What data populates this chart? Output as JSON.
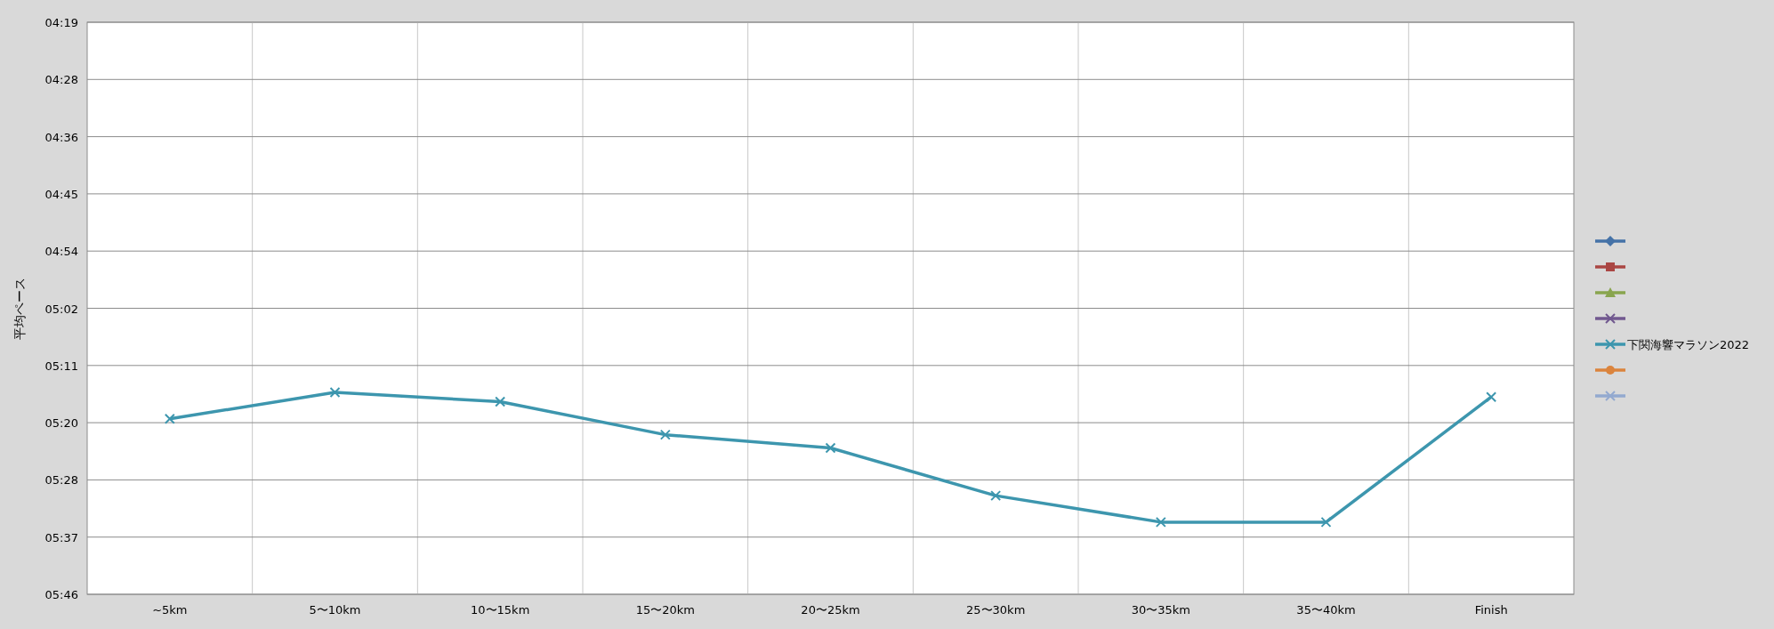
{
  "chart_data": {
    "type": "line",
    "ylabel": "平均ペース",
    "categories": [
      "~5km",
      "5〜10km",
      "10〜15km",
      "15〜20km",
      "20〜25km",
      "25〜30km",
      "30〜35km",
      "35〜40km",
      "Finish"
    ],
    "ylim": [
      345.6,
      259.2
    ],
    "yticks": [
      {
        "value": 259.2,
        "label": "04:19"
      },
      {
        "value": 267.84,
        "label": "04:28"
      },
      {
        "value": 276.48,
        "label": "04:36"
      },
      {
        "value": 285.12,
        "label": "04:45"
      },
      {
        "value": 293.76,
        "label": "04:54"
      },
      {
        "value": 302.4,
        "label": "05:02"
      },
      {
        "value": 311.04,
        "label": "05:11"
      },
      {
        "value": 319.68,
        "label": "05:20"
      },
      {
        "value": 328.32,
        "label": "05:28"
      },
      {
        "value": 336.96,
        "label": "05:37"
      },
      {
        "value": 345.6,
        "label": "05:46"
      }
    ],
    "grid": true,
    "legend": "right",
    "series": [
      {
        "color": "#4572a7",
        "marker": "diamond",
        "values": [
          null,
          null,
          null,
          null,
          null,
          null,
          null,
          null,
          null
        ]
      },
      {
        "color": "#aa4643",
        "marker": "square",
        "values": [
          null,
          null,
          null,
          null,
          null,
          null,
          null,
          null,
          null
        ]
      },
      {
        "color": "#89a54e",
        "marker": "triangle",
        "values": [
          null,
          null,
          null,
          null,
          null,
          null,
          null,
          null,
          null
        ]
      },
      {
        "color": "#71588f",
        "marker": "cross",
        "values": [
          null,
          null,
          null,
          null,
          null,
          null,
          null,
          null,
          null
        ]
      },
      {
        "name": "下関海響マラソン2022",
        "color": "#3d96ae",
        "marker": "cross",
        "values": [
          319.1,
          315.1,
          316.5,
          321.5,
          323.5,
          330.7,
          334.7,
          334.7,
          315.8
        ]
      },
      {
        "color": "#db843d",
        "marker": "circle",
        "values": [
          null,
          null,
          null,
          null,
          null,
          null,
          null,
          null,
          null
        ]
      },
      {
        "color": "#93a9cf",
        "marker": "cross",
        "values": [
          null,
          null,
          null,
          null,
          null,
          null,
          null,
          null,
          null
        ]
      }
    ]
  }
}
